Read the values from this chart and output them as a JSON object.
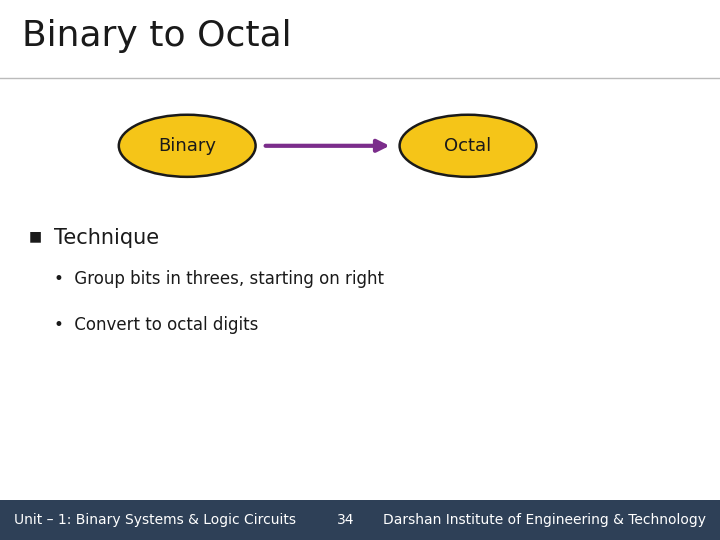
{
  "title": "Binary to Octal",
  "title_fontsize": 26,
  "title_color": "#1a1a1a",
  "background_color": "#ffffff",
  "ellipse_fill": "#f5c518",
  "ellipse_edge": "#1a1a1a",
  "ellipse_lw": 1.8,
  "binary_label": "Binary",
  "octal_label": "Octal",
  "ellipse_label_fontsize": 13,
  "arrow_color": "#7b2d8b",
  "section_header": "Technique",
  "section_header_fontsize": 15,
  "bullet1": "Group bits in threes, starting on right",
  "bullet2": "Convert to octal digits",
  "bullet_fontsize": 12,
  "footer_left": "Unit – 1: Binary Systems & Logic Circuits",
  "footer_center": "34",
  "footer_right": "Darshan Institute of Engineering & Technology",
  "footer_fontsize": 10,
  "footer_bg": "#2e4057",
  "footer_text_color": "#ffffff",
  "separator_color": "#bbbbbb"
}
